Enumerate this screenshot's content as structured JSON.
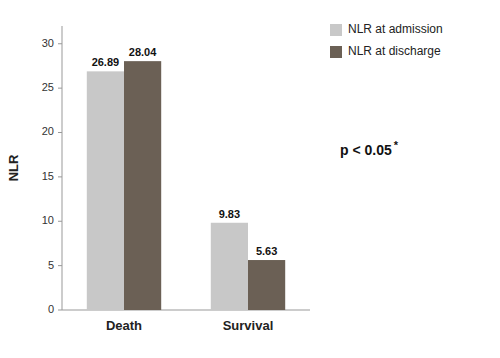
{
  "chart_data": {
    "type": "bar",
    "ylabel": "NLR",
    "categories": [
      "Death",
      "Survival"
    ],
    "series": [
      {
        "name": "NLR at admission",
        "color": "#c8c8c8",
        "values": [
          26.89,
          9.83
        ]
      },
      {
        "name": "NLR at discharge",
        "color": "#6b6055",
        "values": [
          28.04,
          5.63
        ]
      }
    ],
    "ylim": [
      0,
      32
    ],
    "yticks": [
      0,
      5,
      10,
      15,
      20,
      25,
      30
    ],
    "data_labels": true,
    "grid": false,
    "legend": "right",
    "annotations": [
      "p < 0.05",
      "*"
    ]
  }
}
